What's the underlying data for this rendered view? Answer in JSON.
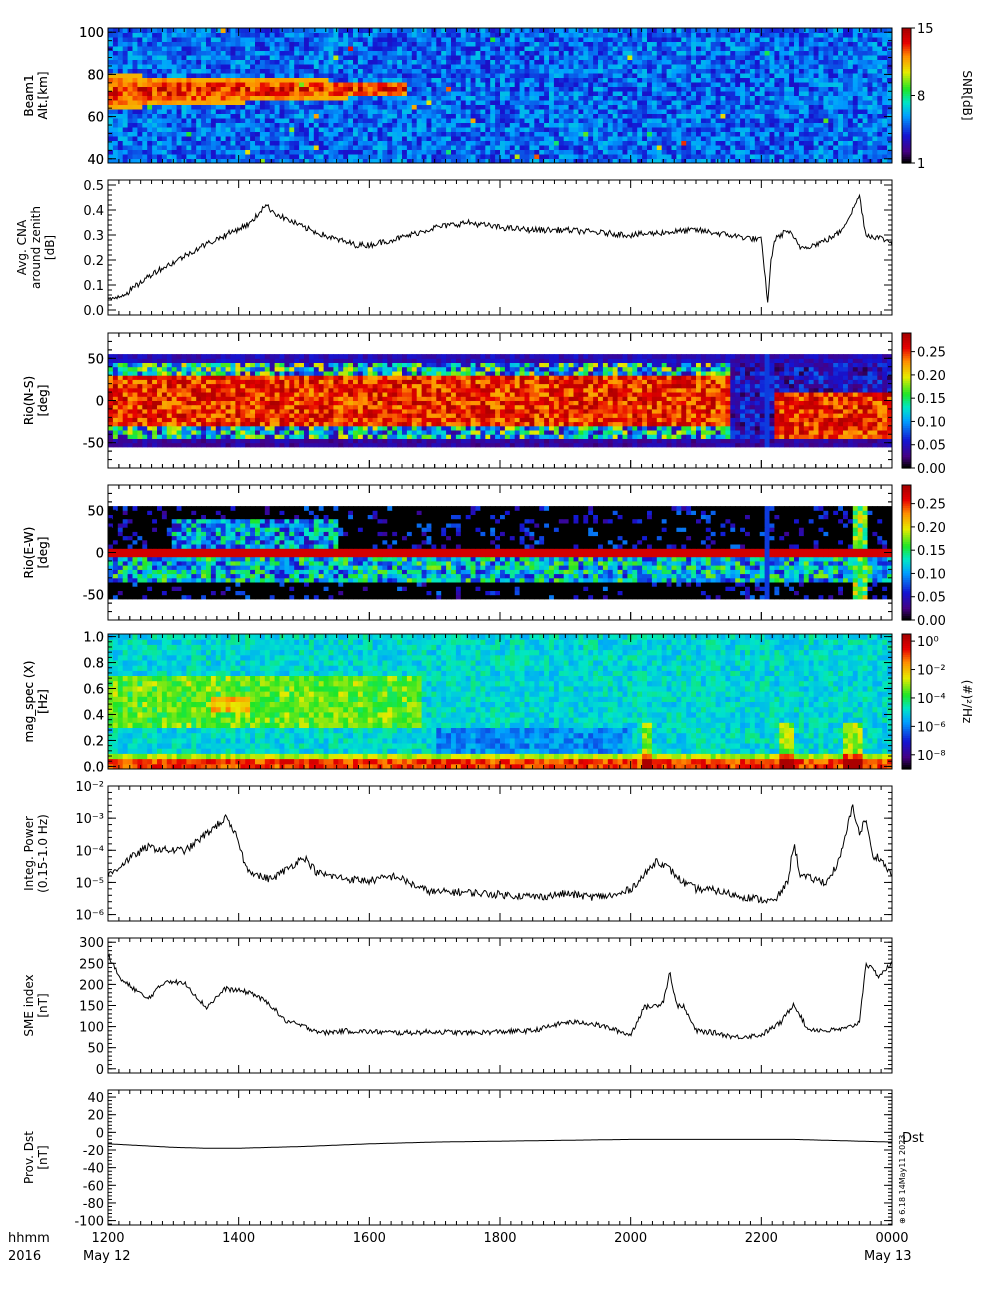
{
  "footer": {
    "left_top": "hhmm",
    "left_bottom": "2016",
    "date_left": "May 12",
    "date_right": "May 13",
    "stamp": "⊕ 6.18 14May11 2023"
  },
  "xaxis": {
    "tick_labels": [
      "1200",
      "1400",
      "1600",
      "1800",
      "2000",
      "2200",
      "0000"
    ],
    "tick_hours": [
      12,
      14,
      16,
      18,
      20,
      22,
      24
    ],
    "range_hours": [
      12,
      24
    ]
  },
  "chart_data": [
    {
      "id": "beam1",
      "type": "heatmap",
      "ylabel_lines": [
        "Beam1",
        "Alt.[km]"
      ],
      "yticks": [
        "40",
        "60",
        "80",
        "100"
      ],
      "ytick_values": [
        40,
        60,
        80,
        100
      ],
      "ylim": [
        38,
        102
      ],
      "colorbar": {
        "label": "SNR[dB]",
        "tick_labels": [
          "1",
          "8",
          "15"
        ],
        "tick_values": [
          1,
          8,
          15
        ],
        "range": [
          1,
          15
        ]
      },
      "features": [
        {
          "name": "enhanced layer",
          "t_start": 12.0,
          "t_end": 16.6,
          "alt_center": 72,
          "alt_halfwidth": 8,
          "snr_peak": 15
        }
      ]
    },
    {
      "id": "cna",
      "type": "line",
      "ylabel_lines": [
        "Avg. CNA",
        "around zenith",
        "[dB]"
      ],
      "yticks": [
        "0.0",
        "0.1",
        "0.2",
        "0.3",
        "0.4",
        "0.5"
      ],
      "ytick_values": [
        0.0,
        0.1,
        0.2,
        0.3,
        0.4,
        0.5
      ],
      "ylim": [
        -0.02,
        0.52
      ],
      "log": false,
      "x": [
        12.0,
        12.3,
        12.7,
        13.0,
        13.4,
        13.8,
        14.2,
        14.4,
        14.6,
        15.0,
        15.4,
        15.8,
        16.0,
        16.5,
        17.0,
        17.5,
        18.0,
        18.5,
        19.0,
        19.5,
        20.0,
        20.5,
        21.0,
        21.5,
        22.0,
        22.05,
        22.1,
        22.15,
        22.2,
        22.4,
        22.6,
        22.8,
        23.0,
        23.2,
        23.4,
        23.5,
        23.6,
        23.8,
        24.0
      ],
      "y": [
        0.04,
        0.07,
        0.15,
        0.19,
        0.25,
        0.3,
        0.35,
        0.42,
        0.38,
        0.33,
        0.29,
        0.26,
        0.26,
        0.29,
        0.33,
        0.35,
        0.33,
        0.32,
        0.32,
        0.31,
        0.3,
        0.31,
        0.32,
        0.3,
        0.28,
        0.15,
        0.03,
        0.2,
        0.28,
        0.32,
        0.25,
        0.26,
        0.28,
        0.31,
        0.4,
        0.46,
        0.3,
        0.29,
        0.27
      ],
      "noise": 0.012
    },
    {
      "id": "rio_ns",
      "type": "heatmap",
      "ylabel_lines": [
        "Rio(N-S)",
        "[deg]"
      ],
      "yticks": [
        "-50",
        "0",
        "50"
      ],
      "ytick_values": [
        -50,
        0,
        50
      ],
      "ylim": [
        -80,
        80
      ],
      "data_extent": [
        -55,
        55
      ],
      "colorbar": {
        "label": "",
        "tick_labels": [
          "0.00",
          "0.05",
          "0.10",
          "0.15",
          "0.20",
          "0.25"
        ],
        "tick_values": [
          0.0,
          0.05,
          0.1,
          0.15,
          0.2,
          0.25
        ],
        "range": [
          0,
          0.29
        ]
      }
    },
    {
      "id": "rio_ew",
      "type": "heatmap",
      "ylabel_lines": [
        "Rio(E-W)",
        "[deg]"
      ],
      "yticks": [
        "-50",
        "0",
        "50"
      ],
      "ytick_values": [
        -50,
        0,
        50
      ],
      "ylim": [
        -80,
        80
      ],
      "data_extent": [
        -55,
        55
      ],
      "colorbar": {
        "label": "",
        "tick_labels": [
          "0.00",
          "0.05",
          "0.10",
          "0.15",
          "0.20",
          "0.25"
        ],
        "tick_values": [
          0.0,
          0.05,
          0.1,
          0.15,
          0.2,
          0.25
        ],
        "range": [
          0,
          0.29
        ]
      }
    },
    {
      "id": "mag_spec",
      "type": "heatmap",
      "ylabel_lines": [
        "mag_spec (X)",
        "[Hz]"
      ],
      "yticks": [
        "0.0",
        "0.2",
        "0.4",
        "0.6",
        "0.8",
        "1.0"
      ],
      "ytick_values": [
        0.0,
        0.2,
        0.4,
        0.6,
        0.8,
        1.0
      ],
      "ylim": [
        -0.02,
        1.02
      ],
      "colorbar": {
        "label": "(#)²/Hz",
        "tick_labels": [
          "10⁰",
          "10⁻²",
          "10⁻⁴",
          "10⁻⁶",
          "10⁻⁸"
        ],
        "tick_values": [
          0,
          -2,
          -4,
          -6,
          -8
        ],
        "range": [
          -9,
          0.5
        ]
      }
    },
    {
      "id": "integ_power",
      "type": "line",
      "ylabel_lines": [
        "Integ. Power",
        "(0.15-1.0 Hz)"
      ],
      "yticks": [
        "10⁻⁶",
        "10⁻⁵",
        "10⁻⁴",
        "10⁻³",
        "10⁻²"
      ],
      "ytick_values": [
        -6,
        -5,
        -4,
        -3,
        -2
      ],
      "ylim": [
        -6.2,
        -2.0
      ],
      "log": true,
      "x": [
        12.0,
        12.3,
        12.6,
        12.9,
        13.2,
        13.5,
        13.8,
        14.0,
        14.1,
        14.3,
        14.5,
        14.8,
        15.0,
        15.2,
        15.4,
        15.7,
        16.0,
        16.4,
        16.8,
        17.0,
        17.4,
        17.8,
        18.2,
        18.6,
        19.0,
        19.4,
        19.8,
        20.0,
        20.2,
        20.4,
        20.6,
        20.8,
        21.0,
        21.3,
        21.6,
        21.9,
        22.2,
        22.4,
        22.5,
        22.6,
        22.8,
        23.0,
        23.2,
        23.4,
        23.5,
        23.6,
        23.7,
        23.8,
        24.0
      ],
      "y": [
        -4.8,
        -4.3,
        -3.9,
        -4.0,
        -4.0,
        -3.5,
        -3.0,
        -3.7,
        -4.5,
        -4.8,
        -4.9,
        -4.5,
        -4.2,
        -4.7,
        -4.8,
        -4.9,
        -4.95,
        -4.8,
        -5.2,
        -5.3,
        -5.3,
        -5.35,
        -5.4,
        -5.45,
        -5.35,
        -5.45,
        -5.4,
        -5.2,
        -4.8,
        -4.3,
        -4.6,
        -5.0,
        -5.2,
        -5.25,
        -5.4,
        -5.5,
        -5.6,
        -5.0,
        -3.8,
        -4.8,
        -4.9,
        -5.0,
        -4.3,
        -2.6,
        -3.5,
        -3.0,
        -4.2,
        -4.2,
        -4.8
      ],
      "noise": 0.12
    },
    {
      "id": "sme",
      "type": "line",
      "ylabel_lines": [
        "SME index",
        "[nT]"
      ],
      "yticks": [
        "0",
        "50",
        "100",
        "150",
        "200",
        "250",
        "300"
      ],
      "ytick_values": [
        0,
        50,
        100,
        150,
        200,
        250,
        300
      ],
      "ylim": [
        -10,
        310
      ],
      "log": false,
      "x": [
        12.0,
        12.2,
        12.4,
        12.6,
        12.9,
        13.2,
        13.5,
        13.8,
        14.0,
        14.2,
        14.5,
        14.7,
        15.0,
        15.3,
        15.6,
        16.0,
        16.5,
        17.0,
        17.5,
        18.0,
        18.5,
        19.0,
        19.3,
        19.6,
        20.0,
        20.2,
        20.4,
        20.5,
        20.6,
        20.7,
        20.8,
        21.0,
        21.3,
        21.6,
        22.0,
        22.3,
        22.5,
        22.7,
        23.0,
        23.3,
        23.5,
        23.6,
        23.8,
        24.0
      ],
      "y": [
        270,
        210,
        190,
        165,
        210,
        200,
        145,
        190,
        185,
        180,
        150,
        115,
        100,
        85,
        90,
        88,
        85,
        88,
        85,
        88,
        90,
        110,
        110,
        100,
        80,
        145,
        150,
        160,
        230,
        150,
        150,
        90,
        85,
        75,
        80,
        110,
        155,
        95,
        90,
        95,
        110,
        250,
        220,
        250
      ],
      "noise": 6
    },
    {
      "id": "dst",
      "type": "line",
      "ylabel_lines": [
        "Prov. Dst",
        "[nT]"
      ],
      "yticks": [
        "-100",
        "-80",
        "-60",
        "-40",
        "-20",
        "0",
        "20",
        "40"
      ],
      "ytick_values": [
        -100,
        -80,
        -60,
        -40,
        -20,
        0,
        20,
        40
      ],
      "ylim": [
        -105,
        48
      ],
      "log": false,
      "series_label": "Dst",
      "x": [
        12.0,
        12.5,
        13.0,
        13.5,
        14.0,
        14.5,
        15.0,
        16.0,
        17.0,
        18.0,
        19.0,
        20.0,
        21.0,
        22.0,
        22.5,
        23.0,
        23.5,
        24.0
      ],
      "y": [
        -13,
        -15,
        -17,
        -18,
        -18,
        -17,
        -16,
        -13,
        -11,
        -10,
        -9,
        -8,
        -8,
        -8,
        -8,
        -9,
        -10,
        -11
      ],
      "noise": 0
    }
  ]
}
